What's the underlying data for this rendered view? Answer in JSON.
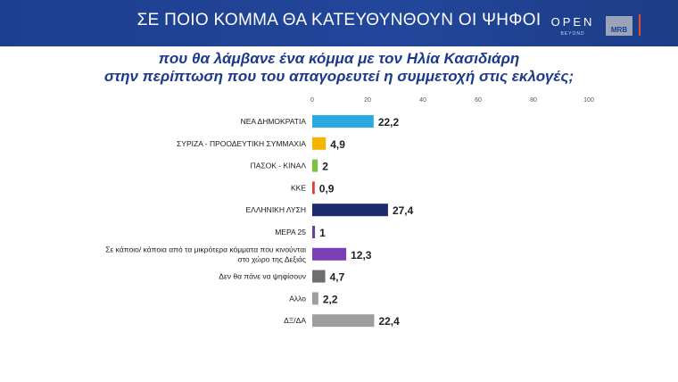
{
  "header": {
    "title": "ΣΕ ΠΟΙΟ ΚΟΜΜΑ ΘΑ ΚΑΤΕΥΘΥΝΘΟΥΝ ΟΙ ΨΗΦΟΙ",
    "logo_open": "OPEN",
    "logo_beyond": "BEYOND",
    "logo_mrb": "MRB"
  },
  "question": {
    "line1": "που θα λάμβανε ένα κόμμα με τον Ηλία Κασιδιάρη",
    "line2": "στην περίπτωση που του απαγορευτεί η συμμετοχή στις εκλογές;"
  },
  "chart_data": {
    "type": "bar",
    "orientation": "horizontal",
    "xlim": [
      0,
      100
    ],
    "ticks": [
      "0",
      "20",
      "40",
      "60",
      "80",
      "100"
    ],
    "grid": false,
    "legend": "none",
    "categories": [
      "ΝΕΑ ΔΗΜΟΚΡΑΤΙΑ",
      "ΣΥΡΙΖΑ - ΠΡΟΟΔΕΥΤΙΚΗ ΣΥΜΜΑΧΙΑ",
      "ΠΑΣΟΚ - ΚΙΝΑΛ",
      "ΚΚΕ",
      "ΕΛΛΗΝΙΚΗ ΛΥΣΗ",
      "ΜΕΡΑ 25",
      "Σε κάποιο/ κάποια από τα μικρότερα κόμματα που κινούνται στο χώρο της Δεξιάς",
      "Δεν θα πάνε να ψηφίσουν",
      "Αλλο",
      "ΔΞ/ΔΑ"
    ],
    "category_lines": [
      [
        "ΝΕΑ ΔΗΜΟΚΡΑΤΙΑ"
      ],
      [
        "ΣΥΡΙΖΑ - ΠΡΟΟΔΕΥΤΙΚΗ ΣΥΜΜΑΧΙΑ"
      ],
      [
        "ΠΑΣΟΚ - ΚΙΝΑΛ"
      ],
      [
        "ΚΚΕ"
      ],
      [
        "ΕΛΛΗΝΙΚΗ ΛΥΣΗ"
      ],
      [
        "ΜΕΡΑ 25"
      ],
      [
        "Σε κάποιο/ κάποια από τα μικρότερα κόμματα που κινούνται",
        "στο χώρο της Δεξιάς"
      ],
      [
        "Δεν θα πάνε να ψηφίσουν"
      ],
      [
        "Αλλο"
      ],
      [
        "ΔΞ/ΔΑ"
      ]
    ],
    "values": [
      22.2,
      4.9,
      2,
      0.9,
      27.4,
      1,
      12.3,
      4.7,
      2.2,
      22.4
    ],
    "value_labels": [
      "22,2",
      "4,9",
      "2",
      "0,9",
      "27,4",
      "1",
      "12,3",
      "4,7",
      "2,2",
      "22,4"
    ],
    "colors": [
      "#2aa9e3",
      "#f4b400",
      "#7cc242",
      "#e53935",
      "#1b2b6b",
      "#6b3fa0",
      "#7b3fb5",
      "#6e6e6e",
      "#9e9e9e",
      "#9e9e9e"
    ]
  }
}
